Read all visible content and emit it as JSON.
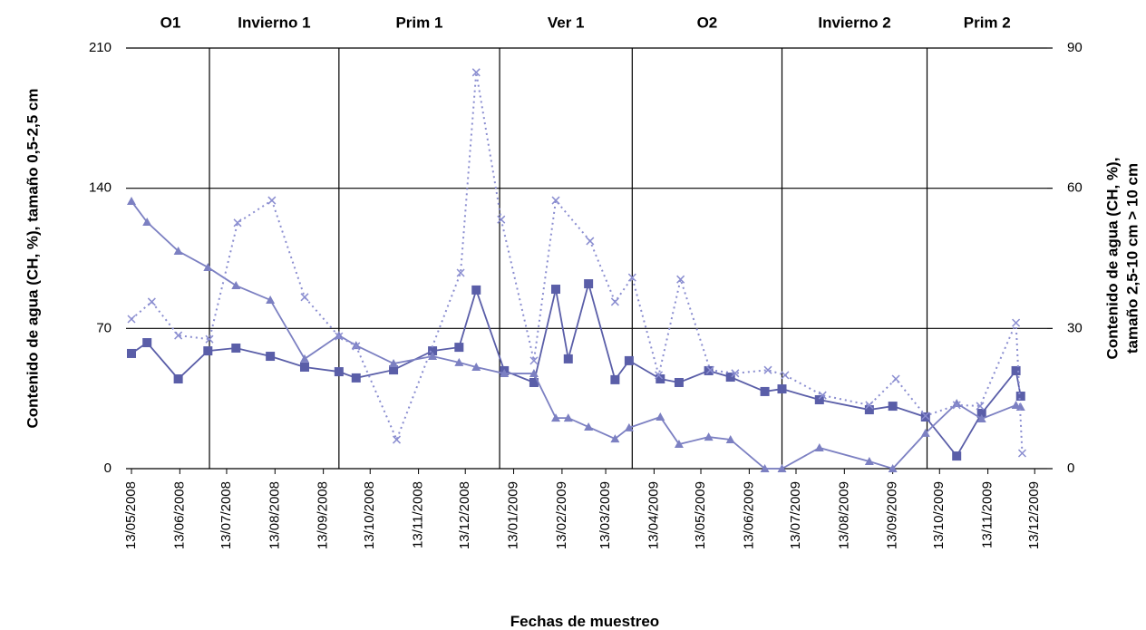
{
  "chart_data": {
    "type": "line",
    "xlabel": "Fechas de muestreo",
    "ylabel": "Contenido de agua (CH, %), tamaño 0,5-2,5 cm",
    "y2label": [
      "Contenido de agua (CH, %),",
      "tamaño 2,5-10 cm > 10 cm"
    ],
    "xlim": [
      "2008-05-13",
      "2009-12-21"
    ],
    "xticks": [
      {
        "value": "2008-05-13",
        "label": "13/05/2008"
      },
      {
        "value": "2008-06-13",
        "label": "13/06/2008"
      },
      {
        "value": "2008-07-13",
        "label": "13/07/2008"
      },
      {
        "value": "2008-08-13",
        "label": "13/08/2008"
      },
      {
        "value": "2008-09-13",
        "label": "13/09/2008"
      },
      {
        "value": "2008-10-13",
        "label": "13/10/2008"
      },
      {
        "value": "2008-11-13",
        "label": "13/11/2008"
      },
      {
        "value": "2008-12-13",
        "label": "13/12/2008"
      },
      {
        "value": "2009-01-13",
        "label": "13/01/2009"
      },
      {
        "value": "2009-02-13",
        "label": "13/02/2009"
      },
      {
        "value": "2009-03-13",
        "label": "13/03/2009"
      },
      {
        "value": "2009-04-13",
        "label": "13/04/2009"
      },
      {
        "value": "2009-05-13",
        "label": "13/05/2009"
      },
      {
        "value": "2009-06-13",
        "label": "13/06/2009"
      },
      {
        "value": "2009-07-13",
        "label": "13/07/2009"
      },
      {
        "value": "2009-08-13",
        "label": "13/08/2009"
      },
      {
        "value": "2009-09-13",
        "label": "13/09/2009"
      },
      {
        "value": "2009-10-13",
        "label": "13/10/2009"
      },
      {
        "value": "2009-11-13",
        "label": "13/11/2009"
      },
      {
        "value": "2009-12-13",
        "label": "13/12/2009"
      }
    ],
    "ylim": [
      0,
      210
    ],
    "yticks": [
      0,
      70,
      140,
      210
    ],
    "y2lim": [
      0,
      90
    ],
    "y2ticks": [
      0,
      30,
      60,
      90
    ],
    "grid": true,
    "seasons": [
      "O1",
      "Invierno 1",
      "Prim 1",
      "Ver 1",
      "O2",
      "Invierno 2",
      "Prim 2"
    ],
    "season_boundaries": [
      "2008-07-02",
      "2008-09-23",
      "2009-01-04",
      "2009-03-30",
      "2009-07-04",
      "2009-10-05"
    ],
    "series": [
      {
        "color": "#5a5ea8",
        "marker": "square",
        "line_style": "solid",
        "x": [
          "2008-05-13",
          "2008-05-23",
          "2008-06-12",
          "2008-07-01",
          "2008-07-19",
          "2008-08-10",
          "2008-09-01",
          "2008-09-23",
          "2008-10-04",
          "2008-10-28",
          "2008-11-22",
          "2008-12-09",
          "2008-12-20",
          "2009-01-07",
          "2009-01-26",
          "2009-02-09",
          "2009-02-17",
          "2009-03-02",
          "2009-03-19",
          "2009-03-28",
          "2009-04-17",
          "2009-04-29",
          "2009-05-18",
          "2009-06-01",
          "2009-06-23",
          "2009-07-04",
          "2009-07-28",
          "2009-08-29",
          "2009-09-13",
          "2009-10-04",
          "2009-10-24",
          "2009-11-09",
          "2009-12-01",
          "2009-12-04"
        ],
        "values": [
          57.5,
          62.9,
          44.8,
          58.8,
          60.2,
          56.1,
          50.7,
          48.4,
          45.3,
          49.3,
          58.8,
          60.6,
          89.2,
          48.9,
          43.0,
          89.6,
          54.8,
          92.3,
          44.4,
          53.9,
          44.8,
          43.0,
          48.9,
          45.7,
          38.5,
          39.8,
          34.4,
          29.4,
          31.2,
          25.8,
          6.3,
          27.6,
          48.9,
          36.2
        ]
      },
      {
        "color": "#7c80c2",
        "marker": "triangle",
        "line_style": "solid",
        "x": [
          "2008-05-13",
          "2008-05-23",
          "2008-06-12",
          "2008-07-01",
          "2008-07-19",
          "2008-08-10",
          "2008-09-01",
          "2008-09-23",
          "2008-10-04",
          "2008-10-28",
          "2008-11-22",
          "2008-12-09",
          "2008-12-20",
          "2009-01-07",
          "2009-01-26",
          "2009-02-09",
          "2009-02-17",
          "2009-03-02",
          "2009-03-19",
          "2009-03-28",
          "2009-04-17",
          "2009-04-29",
          "2009-05-18",
          "2009-06-01",
          "2009-06-23",
          "2009-07-04",
          "2009-07-28",
          "2009-08-29",
          "2009-09-13",
          "2009-10-04",
          "2009-10-24",
          "2009-11-09",
          "2009-12-01",
          "2009-12-04"
        ],
        "values": [
          133.5,
          123.1,
          108.6,
          100.5,
          91.4,
          84.2,
          54.8,
          66.5,
          61.5,
          52.5,
          56.1,
          53.0,
          50.7,
          47.5,
          47.5,
          25.3,
          25.3,
          20.8,
          14.9,
          20.4,
          25.8,
          12.2,
          15.8,
          14.5,
          0,
          0,
          10.4,
          3.6,
          0,
          17.7,
          32.6,
          24.9,
          31.7,
          30.8
        ]
      },
      {
        "color": "#8a8dd0",
        "marker": "cross",
        "line_style": "dotted",
        "axis": "y2",
        "x": [
          "2008-05-13",
          "2008-05-26",
          "2008-06-12",
          "2008-07-02",
          "2008-07-20",
          "2008-08-11",
          "2008-09-01",
          "2008-09-23",
          "2008-10-04",
          "2008-10-30",
          "2008-12-10",
          "2008-12-20",
          "2009-01-05",
          "2009-01-26",
          "2009-02-09",
          "2009-03-03",
          "2009-03-19",
          "2009-03-30",
          "2009-04-16",
          "2009-04-30",
          "2009-05-19",
          "2009-06-04",
          "2009-06-25",
          "2009-07-06",
          "2009-07-30",
          "2009-08-29",
          "2009-09-15",
          "2009-10-04",
          "2009-10-24",
          "2009-11-08",
          "2009-12-01",
          "2009-12-05"
        ],
        "values": [
          32.0,
          35.7,
          28.5,
          27.7,
          52.6,
          57.4,
          36.7,
          28.3,
          26.2,
          6.2,
          41.9,
          84.8,
          53.3,
          23.1,
          57.4,
          48.7,
          35.7,
          40.9,
          20.0,
          40.5,
          21.1,
          20.4,
          21.1,
          20.0,
          15.7,
          13.6,
          19.2,
          11.3,
          13.6,
          13.4,
          31.2,
          3.3
        ]
      }
    ]
  }
}
